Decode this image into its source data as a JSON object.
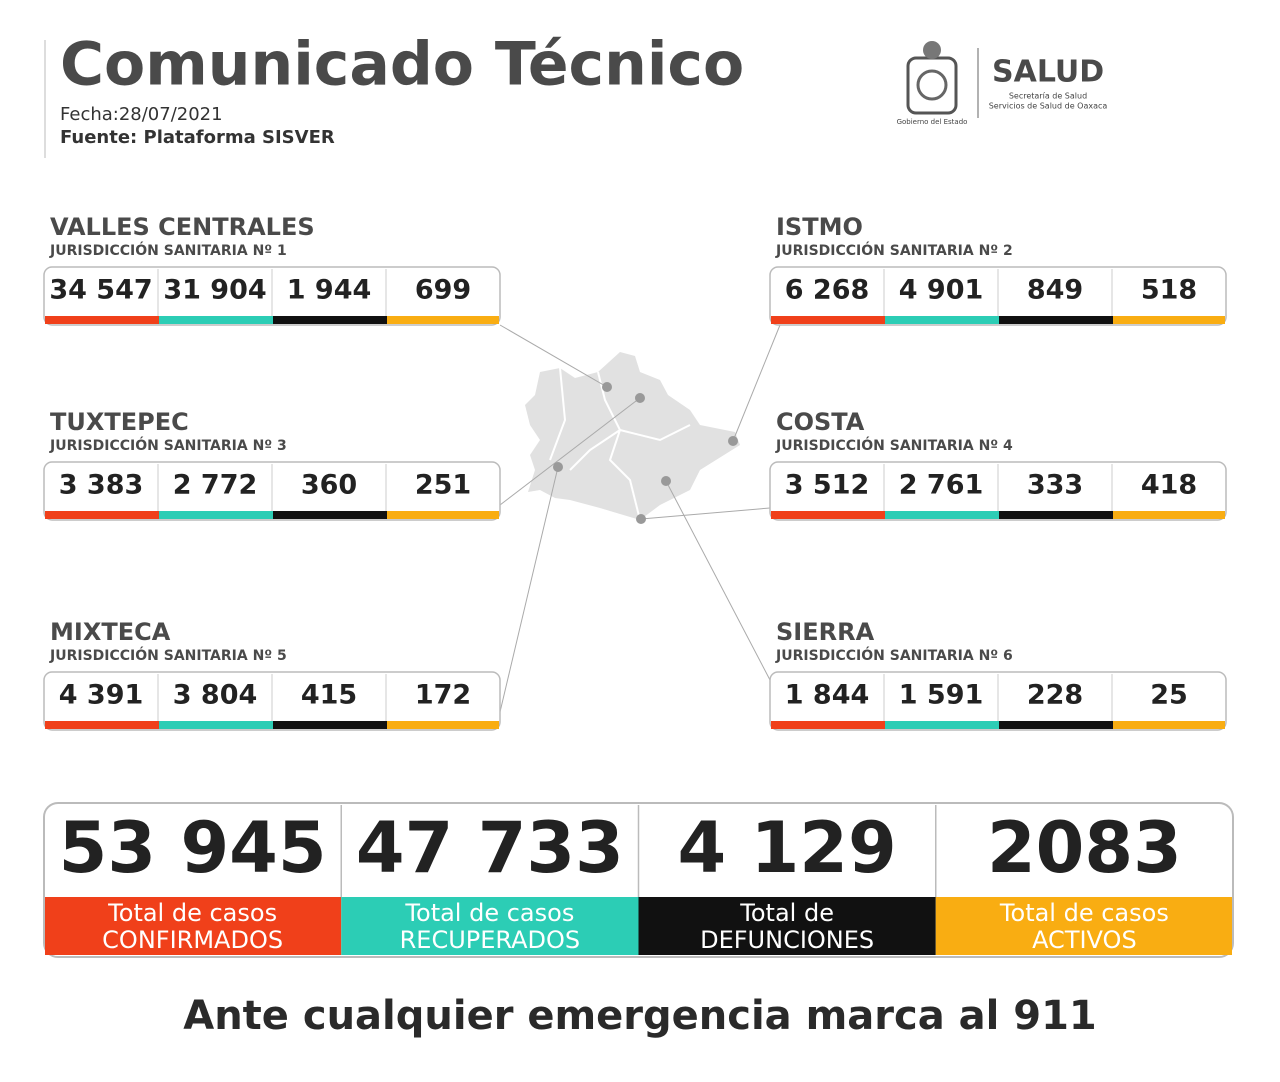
{
  "header": {
    "title": "Comunicado Técnico",
    "date": "Fecha:28/07/2021",
    "source": "Fuente: Plataforma SISVER"
  },
  "logo": {
    "brand": "SALUD",
    "line1": "Secretaría de Salud",
    "line2": "Servicios de Salud de Oaxaca",
    "government": "Gobierno del Estado"
  },
  "regions": [
    {
      "name": "VALLES CENTRALES",
      "subtitle": "JURISDICCIÓN SANITARIA Nº 1",
      "values": [
        "34 547",
        "31 904",
        "1 944",
        "699"
      ]
    },
    {
      "name": "ISTMO",
      "subtitle": "JURISDICCIÓN SANITARIA Nº 2",
      "values": [
        "6 268",
        "4 901",
        "849",
        "518"
      ]
    },
    {
      "name": "TUXTEPEC",
      "subtitle": "JURISDICCIÓN SANITARIA Nº 3",
      "values": [
        "3 383",
        "2 772",
        "360",
        "251"
      ]
    },
    {
      "name": "COSTA",
      "subtitle": "JURISDICCIÓN SANITARIA Nº 4",
      "values": [
        "3 512",
        "2 761",
        "333",
        "418"
      ]
    },
    {
      "name": "MIXTECA",
      "subtitle": "JURISDICCIÓN SANITARIA Nº 5",
      "values": [
        "4 391",
        "3 804",
        "415",
        "172"
      ]
    },
    {
      "name": "SIERRA",
      "subtitle": "JURISDICCIÓN SANITARIA Nº 6",
      "values": [
        "1 844",
        "1 591",
        "228",
        "25"
      ]
    }
  ],
  "totals": [
    {
      "value": "53 945",
      "label_top": "Total de casos",
      "label_bottom": "CONFIRMADOS"
    },
    {
      "value": "47 733",
      "label_top": "Total de casos",
      "label_bottom": "RECUPERADOS"
    },
    {
      "value": "4 129",
      "label_top": "Total de",
      "label_bottom": "DEFUNCIONES"
    },
    {
      "value": "2083",
      "label_top": "Total de casos",
      "label_bottom": "ACTIVOS"
    }
  ],
  "footer": "Ante cualquier emergencia marca al 911"
}
